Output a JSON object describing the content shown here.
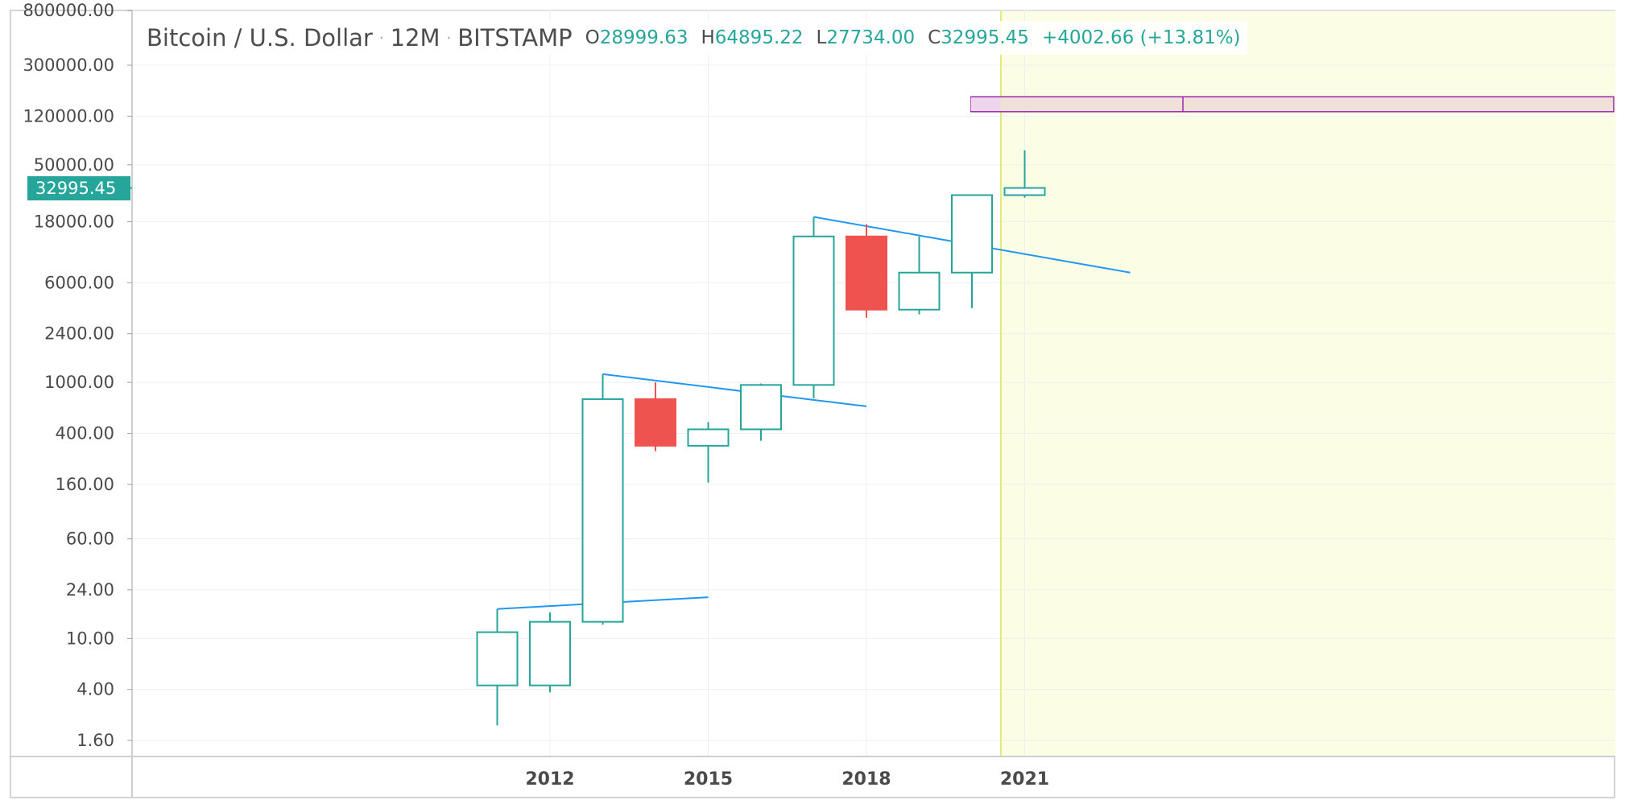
{
  "legend": {
    "symbol": "Bitcoin / U.S. Dollar",
    "interval": "12M",
    "exchange": "BITSTAMP",
    "open_label": "O",
    "open": "28999.63",
    "high_label": "H",
    "high": "64895.22",
    "low_label": "L",
    "low": "27734.00",
    "close_label": "C",
    "close": "32995.45",
    "change": "+4002.66 (+13.81%)"
  },
  "price_tag": {
    "label": "32995.45",
    "value": 32995.45
  },
  "colors": {
    "up": "#26a69a",
    "down": "#ef5350",
    "trendline": "#2196f3",
    "highlight_zone": "#fbfde4",
    "vertical_marker": "#e2ec7a",
    "target_box_fill": "#efe0d8",
    "target_box_border": "#9c27b0",
    "grid": "#efefef"
  },
  "chart_data": {
    "type": "candlestick",
    "title": "Bitcoin / U.S. Dollar · 12M · BITSTAMP",
    "y_scale": "log",
    "y_ticks": [
      {
        "label": "800000.00",
        "value": 800000
      },
      {
        "label": "300000.00",
        "value": 300000
      },
      {
        "label": "120000.00",
        "value": 120000
      },
      {
        "label": "50000.00",
        "value": 50000
      },
      {
        "label": "18000.00",
        "value": 18000
      },
      {
        "label": "6000.00",
        "value": 6000
      },
      {
        "label": "2400.00",
        "value": 2400
      },
      {
        "label": "1000.00",
        "value": 1000
      },
      {
        "label": "400.00",
        "value": 400
      },
      {
        "label": "160.00",
        "value": 160
      },
      {
        "label": "60.00",
        "value": 60
      },
      {
        "label": "24.00",
        "value": 24
      },
      {
        "label": "10.00",
        "value": 10
      },
      {
        "label": "4.00",
        "value": 4
      },
      {
        "label": "1.60",
        "value": 1.6
      }
    ],
    "x_ticks": [
      {
        "label": "2012",
        "year": 2012
      },
      {
        "label": "2015",
        "year": 2015
      },
      {
        "label": "2018",
        "year": 2018
      },
      {
        "label": "2021",
        "year": 2021
      }
    ],
    "candles": [
      {
        "year": 2011,
        "open": 4.3,
        "high": 17,
        "low": 2.1,
        "close": 11.2
      },
      {
        "year": 2012,
        "open": 4.3,
        "high": 16,
        "low": 3.8,
        "close": 13.5
      },
      {
        "year": 2013,
        "open": 13.5,
        "high": 1160,
        "low": 12.8,
        "close": 740
      },
      {
        "year": 2014,
        "open": 740,
        "high": 1000,
        "low": 290,
        "close": 320
      },
      {
        "year": 2015,
        "open": 320,
        "high": 490,
        "low": 165,
        "close": 430
      },
      {
        "year": 2016,
        "open": 430,
        "high": 980,
        "low": 350,
        "close": 955
      },
      {
        "year": 2017,
        "open": 955,
        "high": 19600,
        "low": 750,
        "close": 13800
      },
      {
        "year": 2018,
        "open": 13800,
        "high": 17200,
        "low": 3200,
        "close": 3700
      },
      {
        "year": 2019,
        "open": 3700,
        "high": 13800,
        "low": 3400,
        "close": 7200
      },
      {
        "year": 2020,
        "open": 7200,
        "high": 29000,
        "low": 3800,
        "close": 28999.63
      },
      {
        "year": 2021,
        "open": 28999.63,
        "high": 64895.22,
        "low": 27734,
        "close": 32995.45
      }
    ],
    "trendlines": [
      {
        "from": {
          "year": 2011,
          "price": 17
        },
        "to": {
          "year": 2015,
          "price": 21
        }
      },
      {
        "from": {
          "year": 2013,
          "price": 1160
        },
        "to": {
          "year": 2018,
          "price": 650
        }
      },
      {
        "from": {
          "year": 2017,
          "price": 19600
        },
        "to": {
          "year": 2023,
          "price": 7200
        }
      }
    ],
    "highlight_zone_from_year": 2020.55,
    "target_zone": {
      "from_year": 2019.98,
      "price_top": 170000,
      "price_bottom": 130000,
      "divider_year": 2024
    }
  }
}
